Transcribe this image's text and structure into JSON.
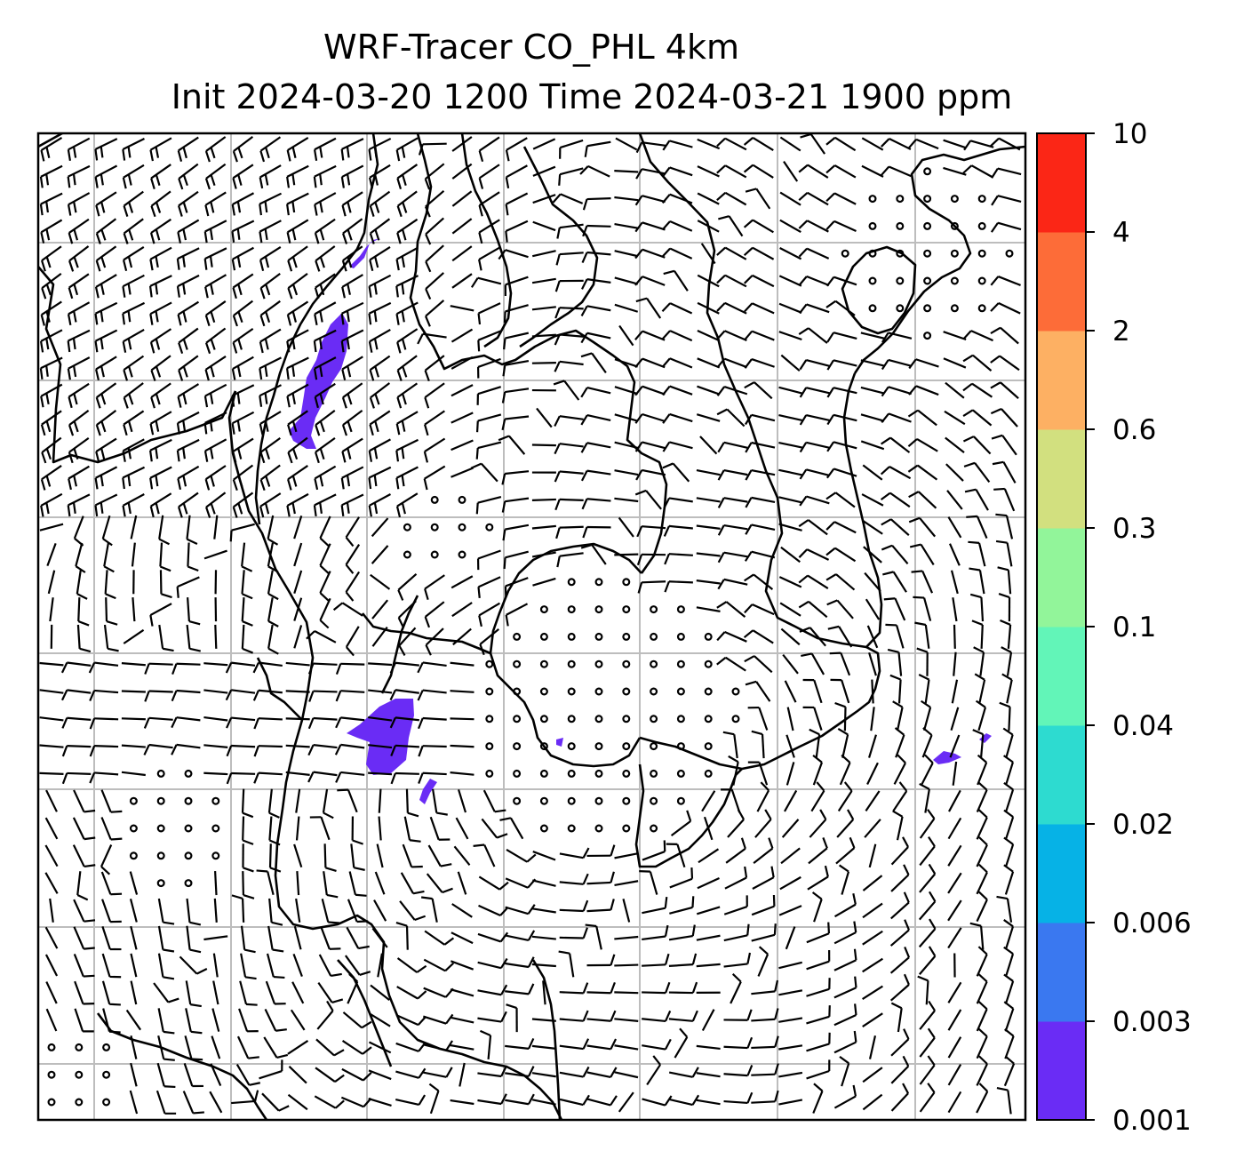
{
  "chart_data": {
    "type": "heatmap",
    "title_line1": "WRF-Tracer CO_PHL 4km",
    "title_line2": "Init 2024-03-20 1200 Time 2024-03-21 1900 ppm",
    "grid": true,
    "colorbar": {
      "location": "right",
      "levels": [
        "0.001",
        "0.003",
        "0.006",
        "0.02",
        "0.04",
        "0.1",
        "0.3",
        "0.6",
        "2",
        "4",
        "10"
      ],
      "colors": [
        "#6a2cf5",
        "#3a78f0",
        "#06b2e6",
        "#2ddbd0",
        "#62f5b8",
        "#92f59a",
        "#d2e07f",
        "#fdb063",
        "#fd6c38",
        "#fb2616"
      ]
    },
    "tracer_plumes": [
      {
        "region": "north-inland",
        "level_index": 0
      },
      {
        "region": "central-city",
        "level_index": 0
      },
      {
        "region": "south-bay",
        "level_index": 0
      },
      {
        "region": "east-coast",
        "level_index": 0
      }
    ],
    "wind_barbs": "1000 hPa wind field (barbs and calm circles)"
  }
}
